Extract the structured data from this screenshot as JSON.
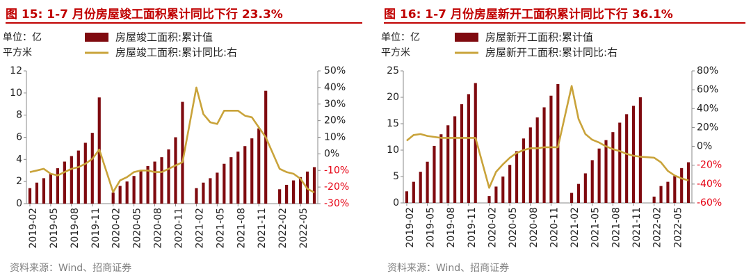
{
  "figures": [
    {
      "title": "图 15:  1-7 月份房屋竣工面积累计同比下行 23.3%",
      "source": "资料来源：Wind、招商证券"
    },
    {
      "title": "图 16:  1-7 月份房屋新开工面积累计同比下行 36.1%",
      "source": "资料来源：Wind、招商证券"
    }
  ],
  "colors": {
    "bar": "#7f0a0f",
    "line": "#c9a33a",
    "title": "#c00000",
    "right_axis": "#e60012",
    "text": "#222222"
  },
  "chart_data": [
    {
      "type": "bar",
      "unit_label": [
        "单位：亿",
        "平方米"
      ],
      "legend": [
        "房屋竣工面积:累计值",
        "房屋竣工面积:累计同比:右"
      ],
      "categories": [
        "2019-02",
        "2019-03",
        "2019-04",
        "2019-05",
        "2019-06",
        "2019-07",
        "2019-08",
        "2019-09",
        "2019-10",
        "2019-11",
        "2019-12",
        "2020-01",
        "2020-02",
        "2020-03",
        "2020-04",
        "2020-05",
        "2020-06",
        "2020-07",
        "2020-08",
        "2020-09",
        "2020-10",
        "2020-11",
        "2020-12",
        "2021-01",
        "2021-02",
        "2021-03",
        "2021-04",
        "2021-05",
        "2021-06",
        "2021-07",
        "2021-08",
        "2021-09",
        "2021-10",
        "2021-11",
        "2021-12",
        "2022-01",
        "2022-02",
        "2022-03",
        "2022-04",
        "2022-05",
        "2022-06",
        "2022-07"
      ],
      "xtick_labels": [
        "2019-02",
        "2019-05",
        "2019-08",
        "2019-11",
        "2020-02",
        "2020-05",
        "2020-08",
        "2020-11",
        "2021-02",
        "2021-05",
        "2021-08",
        "2021-11",
        "2022-02",
        "2022-05"
      ],
      "series": [
        {
          "name": "房屋竣工面积:累计值",
          "axis": "left",
          "type": "bar",
          "values": [
            1.4,
            1.9,
            2.3,
            2.7,
            3.2,
            3.8,
            4.3,
            4.8,
            5.5,
            6.4,
            9.6,
            null,
            1.0,
            1.6,
            2.0,
            2.5,
            3.0,
            3.4,
            3.8,
            4.2,
            4.9,
            6.0,
            9.2,
            null,
            1.4,
            1.9,
            2.3,
            2.8,
            3.6,
            4.2,
            4.7,
            5.2,
            5.9,
            6.8,
            10.2,
            null,
            1.3,
            1.7,
            2.1,
            2.4,
            2.9,
            3.3
          ]
        },
        {
          "name": "房屋竣工面积:累计同比:右",
          "axis": "right",
          "type": "line",
          "values": [
            -11.0,
            -10.0,
            -9.0,
            -12.0,
            -13.0,
            -11.0,
            -9.0,
            -8.0,
            -6.0,
            -3.0,
            2.6,
            null,
            -23.0,
            -16.0,
            -14.0,
            -11.0,
            -10.0,
            -10.0,
            -11.0,
            -11.0,
            -9.0,
            -7.0,
            -5.0,
            null,
            40.0,
            24.0,
            19.0,
            18.0,
            26.0,
            26.0,
            26.0,
            23.0,
            22.0,
            16.0,
            10.0,
            null,
            -9.0,
            -11.0,
            -12.0,
            -15.0,
            -21.0,
            -23.3
          ]
        }
      ],
      "ylim_left": [
        0,
        12
      ],
      "yticks_left": [
        0,
        2,
        4,
        6,
        8,
        10,
        12
      ],
      "ylim_right": [
        -30,
        50
      ],
      "yticks_right": [
        "-30%",
        "-20%",
        "-10%",
        "0%",
        "10%",
        "20%",
        "30%",
        "40%",
        "50%"
      ],
      "yticks_right_values": [
        -30,
        -20,
        -10,
        0,
        10,
        20,
        30,
        40,
        50
      ]
    },
    {
      "type": "bar",
      "unit_label": [
        "单位：亿",
        "平方米"
      ],
      "legend": [
        "房屋新开工面积:累计值",
        "房屋新开工面积:累计同比:右"
      ],
      "categories": [
        "2019-02",
        "2019-03",
        "2019-04",
        "2019-05",
        "2019-06",
        "2019-07",
        "2019-08",
        "2019-09",
        "2019-10",
        "2019-11",
        "2019-12",
        "2020-01",
        "2020-02",
        "2020-03",
        "2020-04",
        "2020-05",
        "2020-06",
        "2020-07",
        "2020-08",
        "2020-09",
        "2020-10",
        "2020-11",
        "2020-12",
        "2021-01",
        "2021-02",
        "2021-03",
        "2021-04",
        "2021-05",
        "2021-06",
        "2021-07",
        "2021-08",
        "2021-09",
        "2021-10",
        "2021-11",
        "2021-12",
        "2022-01",
        "2022-02",
        "2022-03",
        "2022-04",
        "2022-05",
        "2022-06",
        "2022-07"
      ],
      "xtick_labels": [
        "2019-02",
        "2019-05",
        "2019-08",
        "2019-11",
        "2020-02",
        "2020-05",
        "2020-08",
        "2020-11",
        "2021-02",
        "2021-05",
        "2021-08",
        "2021-11",
        "2022-02",
        "2022-05"
      ],
      "series": [
        {
          "name": "房屋新开工面积:累计值",
          "axis": "left",
          "type": "bar",
          "values": [
            2.2,
            4.0,
            5.9,
            7.8,
            10.8,
            13.0,
            14.7,
            16.4,
            18.7,
            20.6,
            22.7,
            null,
            1.3,
            3.1,
            5.0,
            7.2,
            9.8,
            12.2,
            14.3,
            16.2,
            18.1,
            20.3,
            22.5,
            null,
            1.9,
            3.6,
            5.6,
            8.1,
            10.3,
            11.9,
            13.4,
            15.2,
            16.8,
            18.4,
            20.0,
            null,
            1.2,
            3.2,
            4.0,
            5.1,
            6.6,
            7.7
          ]
        },
        {
          "name": "房屋新开工面积:累计同比:右",
          "axis": "right",
          "type": "line",
          "values": [
            6,
            12,
            13,
            11,
            10,
            9,
            9,
            9,
            9,
            9,
            9,
            null,
            -44,
            -27,
            -19,
            -12,
            -7,
            -4,
            -2,
            -2,
            -1,
            -1,
            -1,
            null,
            64,
            29,
            13,
            7,
            4,
            0,
            -3,
            -5,
            -8,
            -10,
            -11,
            null,
            -12,
            -17,
            -26,
            -31,
            -34,
            -36.1
          ]
        }
      ],
      "ylim_left": [
        0,
        25
      ],
      "yticks_left": [
        0,
        5,
        10,
        15,
        20,
        25
      ],
      "ylim_right": [
        -60,
        80
      ],
      "yticks_right": [
        "-60%",
        "-40%",
        "-20%",
        "0%",
        "20%",
        "40%",
        "60%",
        "80%"
      ],
      "yticks_right_values": [
        -60,
        -40,
        -20,
        0,
        20,
        40,
        60,
        80
      ]
    }
  ]
}
